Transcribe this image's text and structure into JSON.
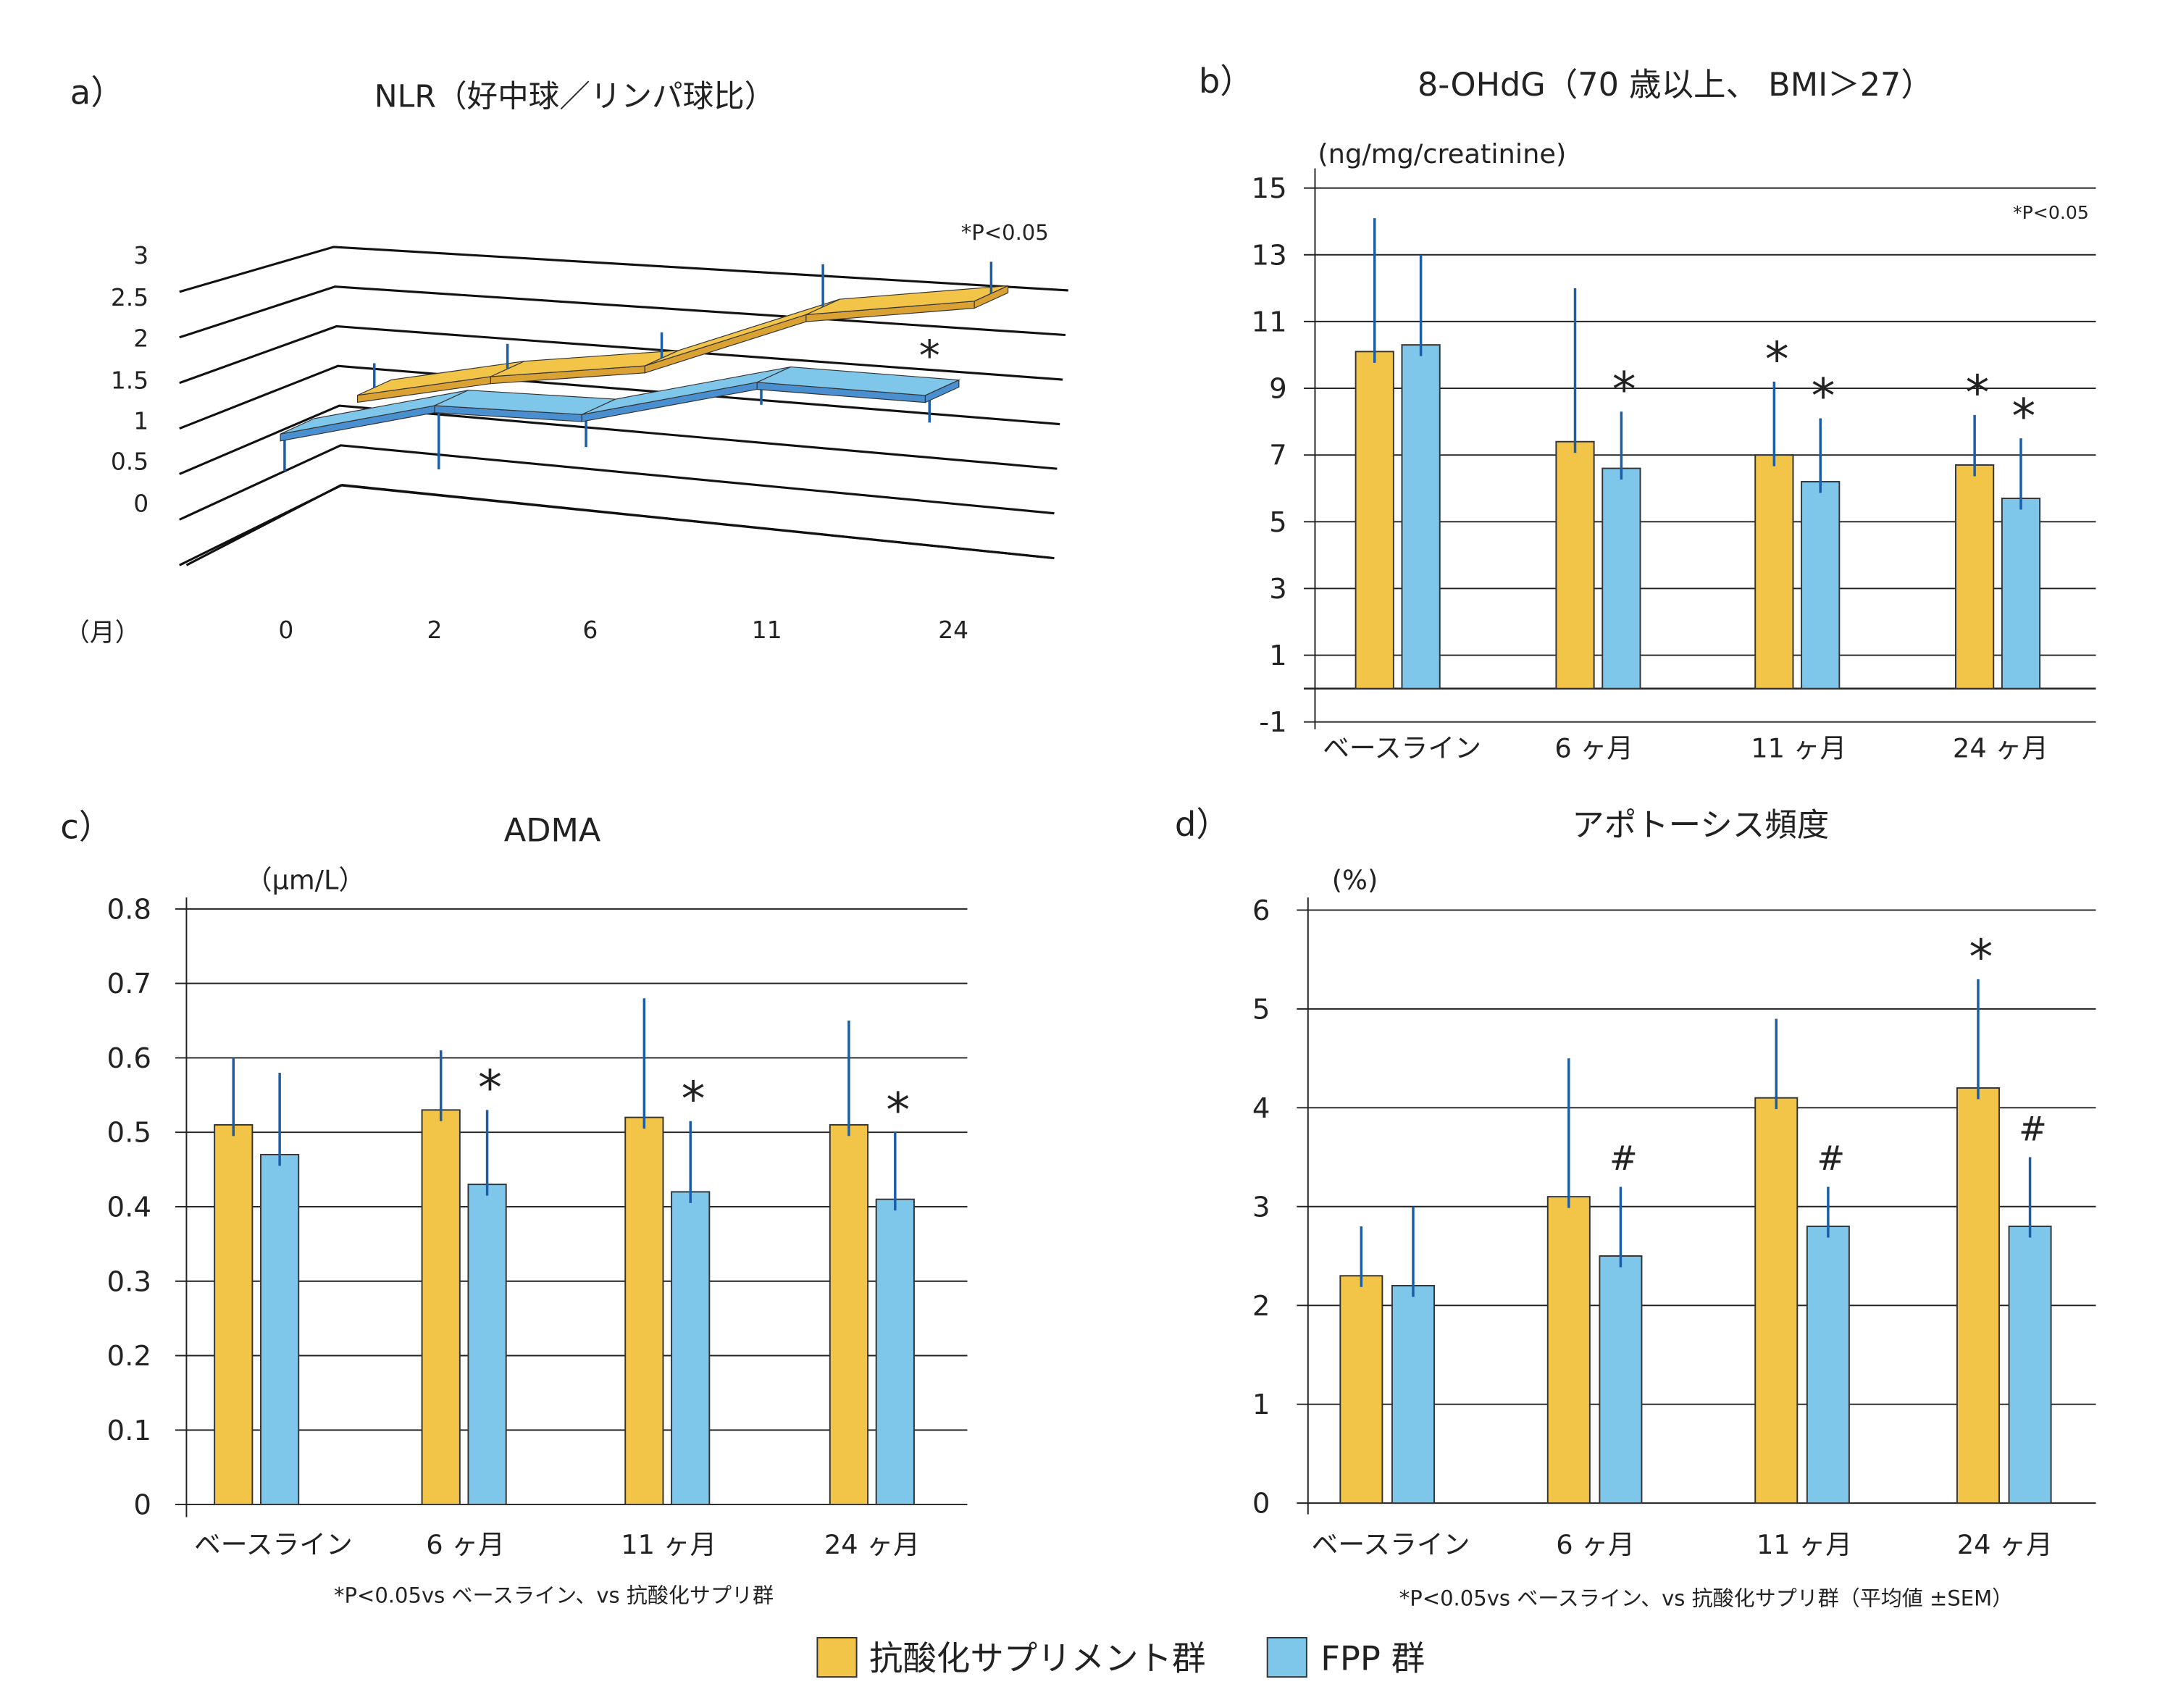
{
  "colors": {
    "antioxidant": "#f2c447",
    "antioxidant_side": "#d9a233",
    "fpp": "#7fc6eb",
    "fpp_side": "#4a8fcf",
    "error_bar": "#1a5ea8",
    "grid": "#222222"
  },
  "legend": [
    {
      "label": "抗酸化サプリメント群",
      "color": "#f2c447"
    },
    {
      "label": "FPP 群",
      "color": "#7fc6eb"
    }
  ],
  "chart_data": [
    {
      "panel": "a）",
      "type": "line",
      "style": "3d-ribbon",
      "title": "NLR（好中球／リンパ球比）",
      "xlabel": "（月）",
      "categories": [
        "0",
        "2",
        "6",
        "11",
        "24"
      ],
      "yticks": [
        "3",
        "2.5",
        "2",
        "1.5",
        "1",
        "0.5",
        "0"
      ],
      "ylim": [
        0,
        3
      ],
      "grid": true,
      "note": "*P<0.05",
      "series": [
        {
          "name": "抗酸化サプリメント群",
          "values": [
            1.0,
            1.4,
            1.7,
            2.5,
            2.8
          ],
          "error": [
            0.35,
            0.35,
            0.35,
            0.55,
            0.4
          ],
          "error_direction": "up"
        },
        {
          "name": "FPP 群",
          "values": [
            0.8,
            0.95,
            1.0,
            1.6,
            1.6
          ],
          "error": [
            0.5,
            0.85,
            0.42,
            0.28,
            0.33
          ],
          "error_direction": "down"
        }
      ],
      "annotations": [
        {
          "category": 4,
          "series": 1,
          "text": "*"
        }
      ]
    },
    {
      "panel": "b）",
      "type": "bar",
      "title": "8-OHdG（70 歳以上、 BMI＞27）",
      "ylabel": "(ng/mg/creatinine)",
      "categories": [
        "ベースライン",
        "6 ヶ月",
        "11 ヶ月",
        "24 ヶ月"
      ],
      "yticks": [
        "15",
        "13",
        "11",
        "9",
        "7",
        "5",
        "3",
        "1",
        "-1"
      ],
      "ylim": [
        -1,
        15
      ],
      "grid": true,
      "note": "*P<0.05",
      "series": [
        {
          "name": "抗酸化サプリメント群",
          "values": [
            10.1,
            7.4,
            7.0,
            6.7
          ],
          "error": [
            4.0,
            4.6,
            2.2,
            1.5
          ]
        },
        {
          "name": "FPP 群",
          "values": [
            10.3,
            6.6,
            6.2,
            5.7
          ],
          "error": [
            2.7,
            1.7,
            1.9,
            1.8
          ]
        }
      ],
      "annotations": [
        {
          "category": 1,
          "series": 1,
          "text": "*"
        },
        {
          "category": 2,
          "series": 0,
          "text": "*"
        },
        {
          "category": 2,
          "series": 1,
          "text": "*"
        },
        {
          "category": 3,
          "series": 0,
          "text": "*"
        },
        {
          "category": 3,
          "series": 1,
          "text": "*"
        }
      ]
    },
    {
      "panel": "c）",
      "type": "bar",
      "title": "ADMA",
      "ylabel": "（μm/L）",
      "categories": [
        "ベースライン",
        "6 ヶ月",
        "11 ヶ月",
        "24 ヶ月"
      ],
      "yticks": [
        "0.8",
        "0.7",
        "0.6",
        "0.5",
        "0.4",
        "0.3",
        "0.2",
        "0.1",
        "0"
      ],
      "ylim": [
        0,
        0.8
      ],
      "grid": true,
      "footnote": "*P<0.05vs ベースライン、vs 抗酸化サプリ群",
      "series": [
        {
          "name": "抗酸化サプリメント群",
          "values": [
            0.51,
            0.53,
            0.52,
            0.51
          ],
          "error": [
            0.09,
            0.08,
            0.16,
            0.14
          ]
        },
        {
          "name": "FPP 群",
          "values": [
            0.47,
            0.43,
            0.42,
            0.41
          ],
          "error": [
            0.11,
            0.1,
            0.095,
            0.09
          ]
        }
      ],
      "annotations": [
        {
          "category": 1,
          "series": 1,
          "text": "*"
        },
        {
          "category": 2,
          "series": 1,
          "text": "*"
        },
        {
          "category": 3,
          "series": 1,
          "text": "*"
        }
      ]
    },
    {
      "panel": "d）",
      "type": "bar",
      "title": "アポトーシス頻度",
      "ylabel": "(%)",
      "categories": [
        "ベースライン",
        "6 ヶ月",
        "11 ヶ月",
        "24 ヶ月"
      ],
      "yticks": [
        "6",
        "5",
        "4",
        "3",
        "2",
        "1",
        "0"
      ],
      "ylim": [
        0,
        6
      ],
      "grid": true,
      "footnote": "*P<0.05vs ベースライン、vs 抗酸化サプリ群（平均値 ±SEM）",
      "series": [
        {
          "name": "抗酸化サプリメント群",
          "values": [
            2.3,
            3.1,
            4.1,
            4.2
          ],
          "error": [
            0.5,
            1.4,
            0.8,
            1.1
          ]
        },
        {
          "name": "FPP 群",
          "values": [
            2.2,
            2.5,
            2.8,
            2.8
          ],
          "error": [
            0.8,
            0.7,
            0.4,
            0.7
          ]
        }
      ],
      "annotations": [
        {
          "category": 1,
          "series": 1,
          "text": "#"
        },
        {
          "category": 2,
          "series": 1,
          "text": "#"
        },
        {
          "category": 3,
          "series": 1,
          "text": "#"
        },
        {
          "category": 3,
          "series": 0,
          "text": "*"
        }
      ]
    }
  ]
}
